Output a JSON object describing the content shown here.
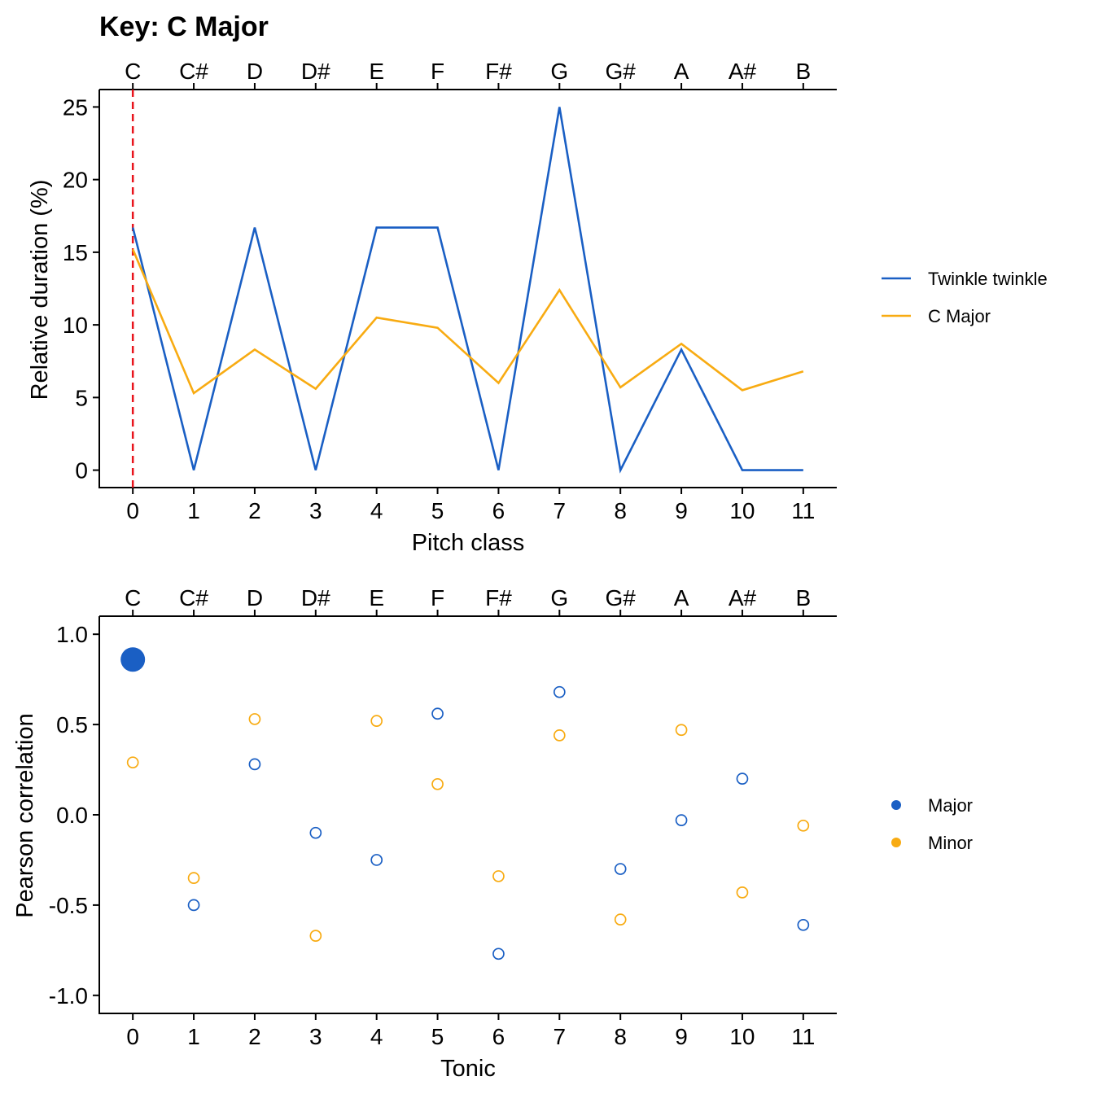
{
  "title": "Key: C Major",
  "colors": {
    "major": "#1a5fc4",
    "minor": "#f8ab12",
    "marker": "#e8141c",
    "axis": "#000000"
  },
  "chart_data": [
    {
      "type": "line",
      "xlabel": "Pitch class",
      "ylabel": "Relative duration (%)",
      "x": [
        0,
        1,
        2,
        3,
        4,
        5,
        6,
        7,
        8,
        9,
        10,
        11
      ],
      "x_ticks": [
        "0",
        "1",
        "2",
        "3",
        "4",
        "5",
        "6",
        "7",
        "8",
        "9",
        "10",
        "11"
      ],
      "top_ticks": [
        "C",
        "C#",
        "D",
        "D#",
        "E",
        "F",
        "F#",
        "G",
        "G#",
        "A",
        "A#",
        "B"
      ],
      "y_ticks": [
        "0",
        "5",
        "10",
        "15",
        "20",
        "25"
      ],
      "ylim": [
        -1.2,
        26.2
      ],
      "xlim": [
        -0.55,
        11.55
      ],
      "key_marker_x": 0,
      "legend_position": "right",
      "series": [
        {
          "name": "Twinkle twinkle",
          "color_key": "major",
          "values": [
            16.7,
            0,
            16.7,
            0,
            16.7,
            16.7,
            0,
            25.0,
            0,
            8.3,
            0,
            0
          ]
        },
        {
          "name": "C Major",
          "color_key": "minor",
          "values": [
            15.2,
            5.3,
            8.3,
            5.6,
            10.5,
            9.8,
            6.0,
            12.4,
            5.7,
            8.7,
            5.5,
            6.8
          ]
        }
      ]
    },
    {
      "type": "scatter",
      "xlabel": "Tonic",
      "ylabel": "Pearson correlation",
      "x": [
        0,
        1,
        2,
        3,
        4,
        5,
        6,
        7,
        8,
        9,
        10,
        11
      ],
      "x_ticks": [
        "0",
        "1",
        "2",
        "3",
        "4",
        "5",
        "6",
        "7",
        "8",
        "9",
        "10",
        "11"
      ],
      "top_ticks": [
        "C",
        "C#",
        "D",
        "D#",
        "E",
        "F",
        "F#",
        "G",
        "G#",
        "A",
        "A#",
        "B"
      ],
      "y_ticks": [
        "-1.0",
        "-0.5",
        "0.0",
        "0.5",
        "1.0"
      ],
      "ylim": [
        -1.1,
        1.1
      ],
      "xlim": [
        -0.55,
        11.55
      ],
      "legend_position": "right",
      "best_match": {
        "series": "Major",
        "x": 0
      },
      "series": [
        {
          "name": "Major",
          "color_key": "major",
          "values": [
            0.86,
            -0.5,
            0.28,
            -0.1,
            -0.25,
            0.56,
            -0.77,
            0.68,
            -0.3,
            -0.03,
            0.2,
            -0.61
          ]
        },
        {
          "name": "Minor",
          "color_key": "minor",
          "values": [
            0.29,
            -0.35,
            0.53,
            -0.67,
            0.52,
            0.17,
            -0.34,
            0.44,
            -0.58,
            0.47,
            -0.43,
            -0.06
          ]
        }
      ]
    }
  ]
}
